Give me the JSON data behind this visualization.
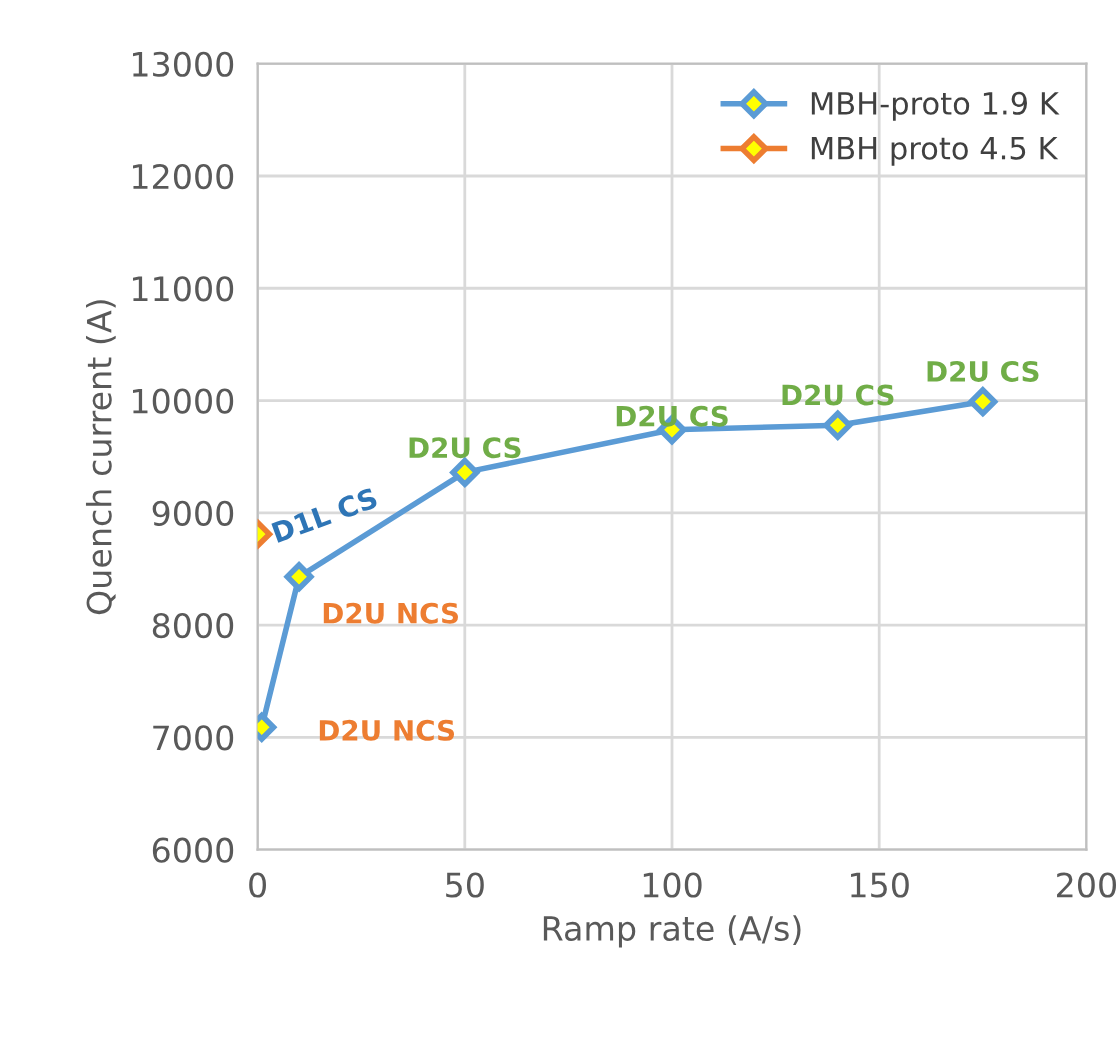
{
  "chart_data": {
    "type": "line",
    "xlabel": "Ramp rate (A/s)",
    "ylabel": "Quench current (A)",
    "xlim": [
      0,
      200
    ],
    "xticks": [
      0,
      50,
      100,
      150,
      200
    ],
    "ylim": [
      6000,
      13000
    ],
    "yticks": [
      6000,
      7000,
      8000,
      9000,
      10000,
      11000,
      12000,
      13000
    ],
    "grid": true,
    "legend": "top right",
    "marker": "diamond",
    "line_style": "solid",
    "series": [
      {
        "name": "MBH-proto 1.9 K",
        "color": "#5b9bd5",
        "x": [
          1,
          10,
          50,
          100,
          140,
          175
        ],
        "values": [
          7090,
          8430,
          9360,
          9740,
          9780,
          9990
        ]
      },
      {
        "name": "MBH proto 4.5 K",
        "color": "#ed7d31",
        "x": [
          0
        ],
        "values": [
          8810
        ]
      }
    ],
    "annotations": [
      {
        "text": "D2U NCS",
        "x": 1,
        "y": 7090
      },
      {
        "text": "D2U NCS",
        "x": 10,
        "y": 8430
      },
      {
        "text": "D1L CS",
        "x": 0,
        "y": 8810
      },
      {
        "text": "D2U CS",
        "x": 50,
        "y": 9360
      },
      {
        "text": "D2U CS",
        "x": 100,
        "y": 9740
      },
      {
        "text": "D2U CS",
        "x": 140,
        "y": 9780
      },
      {
        "text": "D2U CS",
        "x": 175,
        "y": 9990
      }
    ]
  }
}
